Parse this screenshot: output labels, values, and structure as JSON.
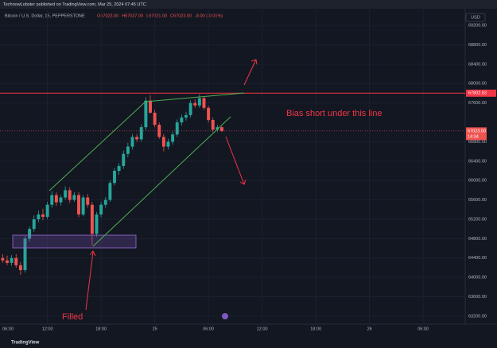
{
  "header": {
    "publisher": "TechnowLobster published on TradingView.com, Mar 25, 2024 07:45 UTC"
  },
  "chart_data": {
    "type": "candlestick",
    "symbol": "Bitcoin / U.S. Dollar, 15, PEPPERSTONE",
    "ohlc_legend": [
      "O67023.00",
      "H67037.00",
      "L67021.00",
      "C67023.00",
      "-8.00 (-0.01%)"
    ],
    "currency": "USD",
    "up_color": "#26a69a",
    "down_color": "#ef5350",
    "x": [
      7,
      7.5,
      8,
      8.5,
      9,
      9.5,
      10,
      10.5,
      11,
      11.5,
      12,
      12.5,
      13,
      13.5,
      14,
      14.5,
      15,
      15.5,
      16,
      16.5,
      17,
      17.5,
      18,
      18.5,
      19,
      19.5,
      20,
      20.5,
      21,
      21.5,
      22,
      22.5,
      23,
      23.5,
      24,
      24.5,
      25,
      25.5,
      26,
      26.5,
      27,
      27.5,
      28,
      28.5,
      29,
      29.5,
      30,
      30.5,
      31,
      31.5
    ],
    "open": [
      64400,
      64350,
      64300,
      64400,
      64250,
      64150,
      64800,
      65000,
      65200,
      65300,
      65250,
      65500,
      65700,
      65550,
      65650,
      65800,
      65600,
      65700,
      65300,
      65650,
      65500,
      64900,
      65300,
      65500,
      65600,
      65950,
      66200,
      66300,
      66550,
      66700,
      66900,
      66850,
      67100,
      67650,
      67400,
      67150,
      66900,
      66700,
      66800,
      66950,
      67200,
      67300,
      67350,
      67600,
      67550,
      67700,
      67500,
      67250,
      67050,
      67100
    ],
    "high": [
      64480,
      64450,
      64460,
      64480,
      64320,
      64850,
      65050,
      65280,
      65380,
      65420,
      65560,
      65780,
      65760,
      65700,
      65880,
      65860,
      65760,
      65760,
      65700,
      65720,
      65560,
      65350,
      65560,
      65660,
      66000,
      66260,
      66360,
      66620,
      66780,
      66960,
      66960,
      67160,
      67720,
      67760,
      67460,
      67200,
      66960,
      66860,
      67010,
      67260,
      67360,
      67420,
      67660,
      67680,
      67780,
      67740,
      67540,
      67300,
      67150,
      67120
    ],
    "low": [
      64300,
      64250,
      64240,
      64200,
      64050,
      64100,
      64740,
      64940,
      65140,
      65180,
      65200,
      65440,
      65480,
      65480,
      65600,
      65540,
      65560,
      65240,
      65260,
      65440,
      64650,
      64840,
      65240,
      65440,
      65560,
      65900,
      66120,
      66240,
      66480,
      66640,
      66800,
      66800,
      67040,
      67380,
      67100,
      66860,
      66600,
      66640,
      66740,
      66900,
      67140,
      67240,
      67300,
      67500,
      67500,
      67460,
      67200,
      67000,
      67000,
      67000
    ],
    "close": [
      64350,
      64300,
      64400,
      64250,
      64150,
      64800,
      65000,
      65200,
      65300,
      65250,
      65500,
      65700,
      65550,
      65650,
      65800,
      65600,
      65700,
      65300,
      65650,
      65500,
      64900,
      65300,
      65500,
      65600,
      65950,
      66200,
      66300,
      66550,
      66700,
      66900,
      66850,
      67100,
      67650,
      67400,
      67150,
      66900,
      66700,
      66800,
      66950,
      67200,
      67300,
      67350,
      67600,
      67550,
      67700,
      67500,
      67250,
      67050,
      67100,
      67023
    ],
    "xlim": [
      6.7,
      58.7
    ],
    "ylim": [
      63100,
      69530
    ],
    "xticks": [
      {
        "value": 12,
        "label": "12:00"
      },
      {
        "value": 18,
        "label": "18:00"
      },
      {
        "value": 24,
        "label": "25"
      },
      {
        "value": 30,
        "label": "06:00"
      },
      {
        "value": 36,
        "label": "12:00"
      },
      {
        "value": 42,
        "label": "18:00"
      },
      {
        "value": 48,
        "label": "26"
      },
      {
        "value": 54,
        "label": "06:00"
      }
    ],
    "first_xtick_label": "06:00",
    "yticks": [
      {
        "value": 63200,
        "label": "63200.00"
      },
      {
        "value": 63600,
        "label": "63600.00"
      },
      {
        "value": 64000,
        "label": "64000.00"
      },
      {
        "value": 64400,
        "label": "64400.00"
      },
      {
        "value": 64800,
        "label": "64800.00"
      },
      {
        "value": 65200,
        "label": "65200.00"
      },
      {
        "value": 65600,
        "label": "65600.00"
      },
      {
        "value": 66000,
        "label": "66000.00"
      },
      {
        "value": 66400,
        "label": "66400.00"
      },
      {
        "value": 66800,
        "label": "66800.00"
      },
      {
        "value": 67600,
        "label": "67600.00"
      },
      {
        "value": 68000,
        "label": "68000.00"
      },
      {
        "value": 68400,
        "label": "68400.00"
      },
      {
        "value": 68800,
        "label": "68800.00"
      },
      {
        "value": 69200,
        "label": "69200.00"
      }
    ],
    "grid": true,
    "horizontal_line": {
      "value": 67802.83,
      "color": "#f23645"
    },
    "last_price": {
      "value": 67023,
      "label": "67023.00"
    },
    "countdown": "14:34",
    "annotations": [
      "Bias short under this line",
      "Filled"
    ]
  },
  "footer": {
    "brand": "TradingView"
  }
}
